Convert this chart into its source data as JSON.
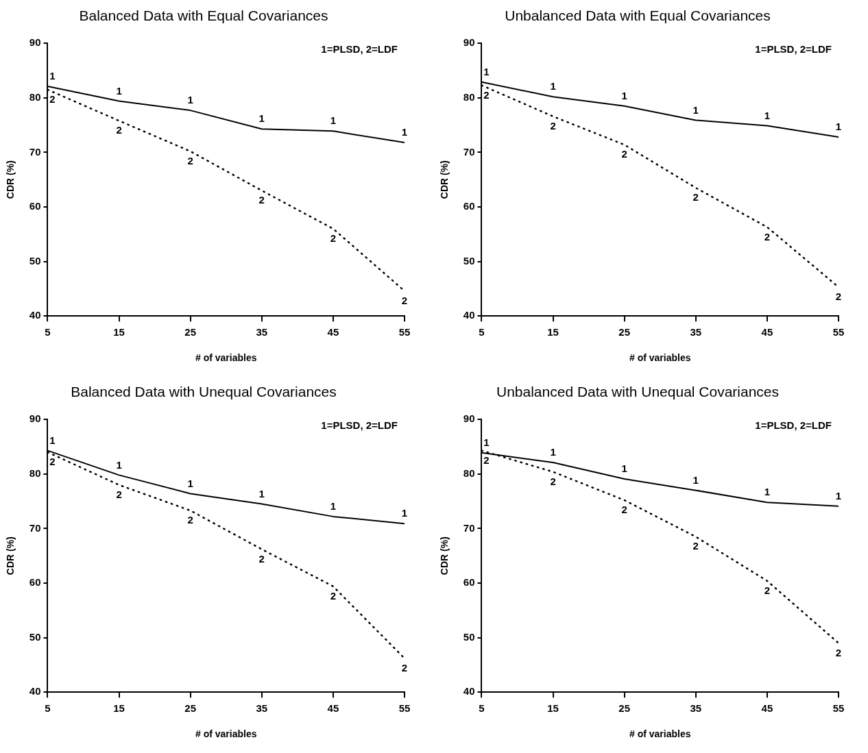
{
  "chart_data": [
    {
      "type": "line",
      "title": "Balanced Data with Equal Covariances",
      "xlabel": "# of variables",
      "ylabel": "CDR (%)",
      "x": [
        5,
        15,
        25,
        35,
        45,
        55
      ],
      "xlim": [
        5,
        55
      ],
      "xticks": [
        5,
        15,
        25,
        35,
        45,
        55
      ],
      "ylim": [
        40,
        90
      ],
      "yticks": [
        40,
        50,
        60,
        70,
        80,
        90
      ],
      "grid": false,
      "legend": false,
      "marker": "none",
      "annotations": [
        "1=PLSD, 2=LDF"
      ],
      "series": [
        {
          "name": "1",
          "color": "#000000",
          "line_style": "solid",
          "values": [
            82.1,
            79.4,
            77.7,
            74.3,
            73.9,
            71.8
          ]
        },
        {
          "name": "2",
          "color": "#000000",
          "line_style": "dotted",
          "values": [
            81.5,
            75.8,
            70.2,
            63.0,
            56.0,
            44.6
          ]
        }
      ]
    },
    {
      "type": "line",
      "title": "Unbalanced Data with Equal Covariances",
      "xlabel": "# of variables",
      "ylabel": "CDR (%)",
      "x": [
        5,
        15,
        25,
        35,
        45,
        55
      ],
      "xlim": [
        5,
        55
      ],
      "xticks": [
        5,
        15,
        25,
        35,
        45,
        55
      ],
      "ylim": [
        40,
        90
      ],
      "yticks": [
        40,
        50,
        60,
        70,
        80,
        90
      ],
      "grid": false,
      "legend": false,
      "marker": "none",
      "annotations": [
        "1=PLSD, 2=LDF"
      ],
      "series": [
        {
          "name": "1",
          "color": "#000000",
          "line_style": "solid",
          "values": [
            82.9,
            80.2,
            78.5,
            75.9,
            74.9,
            72.8
          ]
        },
        {
          "name": "2",
          "color": "#000000",
          "line_style": "dotted",
          "values": [
            82.3,
            76.6,
            71.4,
            63.5,
            56.3,
            45.3
          ]
        }
      ]
    },
    {
      "type": "line",
      "title": "Balanced Data with Unequal Covariances",
      "xlabel": "# of variables",
      "ylabel": "CDR (%)",
      "x": [
        5,
        15,
        25,
        35,
        45,
        55
      ],
      "xlim": [
        5,
        55
      ],
      "xticks": [
        5,
        15,
        25,
        35,
        45,
        55
      ],
      "ylim": [
        40,
        90
      ],
      "yticks": [
        40,
        50,
        60,
        70,
        80,
        90
      ],
      "grid": false,
      "legend": false,
      "marker": "none",
      "annotations": [
        "1=PLSD, 2=LDF"
      ],
      "series": [
        {
          "name": "1",
          "color": "#000000",
          "line_style": "solid",
          "values": [
            84.3,
            79.8,
            76.4,
            74.5,
            72.2,
            70.9
          ]
        },
        {
          "name": "2",
          "color": "#000000",
          "line_style": "dotted",
          "values": [
            84.0,
            78.0,
            73.3,
            66.2,
            59.4,
            46.2
          ]
        }
      ]
    },
    {
      "type": "line",
      "title": "Unbalanced Data with Unequal Covariances",
      "xlabel": "# of variables",
      "ylabel": "CDR (%)",
      "x": [
        5,
        15,
        25,
        35,
        45,
        55
      ],
      "xlim": [
        5,
        55
      ],
      "xticks": [
        5,
        15,
        25,
        35,
        45,
        55
      ],
      "ylim": [
        40,
        90
      ],
      "yticks": [
        40,
        50,
        60,
        70,
        80,
        90
      ],
      "grid": false,
      "legend": false,
      "marker": "none",
      "annotations": [
        "1=PLSD, 2=LDF"
      ],
      "series": [
        {
          "name": "1",
          "color": "#000000",
          "line_style": "solid",
          "values": [
            83.9,
            82.1,
            79.1,
            77.0,
            74.8,
            74.1
          ]
        },
        {
          "name": "2",
          "color": "#000000",
          "line_style": "dotted",
          "values": [
            84.3,
            80.4,
            75.2,
            68.5,
            60.4,
            49.0
          ]
        }
      ]
    }
  ]
}
